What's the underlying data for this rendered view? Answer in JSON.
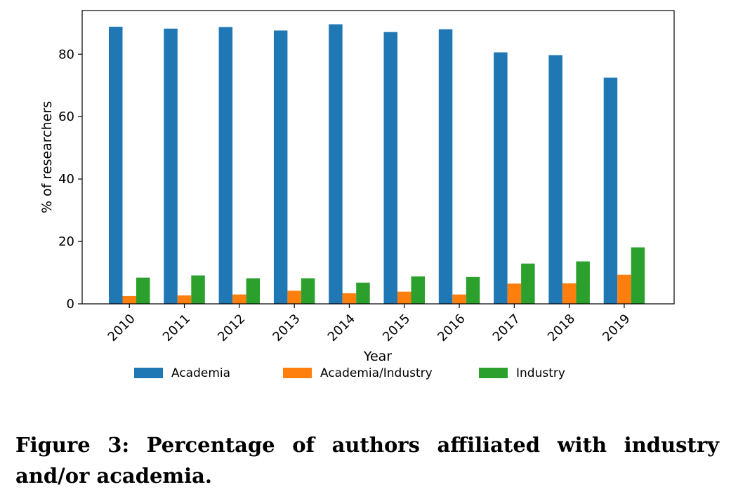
{
  "chart_data": {
    "type": "bar",
    "categories": [
      "2010",
      "2011",
      "2012",
      "2013",
      "2014",
      "2015",
      "2016",
      "2017",
      "2018",
      "2019"
    ],
    "series": [
      {
        "name": "Academia",
        "color": "#1f77b4",
        "values": [
          88.8,
          88.2,
          88.7,
          87.6,
          89.6,
          87.1,
          88.0,
          80.6,
          79.7,
          72.5
        ]
      },
      {
        "name": "Academia/Industry",
        "color": "#ff7f0e",
        "values": [
          2.5,
          2.7,
          3.0,
          4.2,
          3.4,
          3.9,
          3.0,
          6.5,
          6.6,
          9.3
        ]
      },
      {
        "name": "Industry",
        "color": "#2ca02c",
        "values": [
          8.4,
          9.1,
          8.2,
          8.2,
          6.8,
          8.8,
          8.6,
          12.9,
          13.6,
          18.1
        ]
      }
    ],
    "yticks": [
      0,
      20,
      40,
      60,
      80
    ],
    "ylim": [
      0,
      94
    ],
    "xlabel": "Year",
    "ylabel": "% of researchers",
    "legend": "below"
  },
  "caption": "Figure 3: Percentage of authors affiliated with industry and/or academia."
}
